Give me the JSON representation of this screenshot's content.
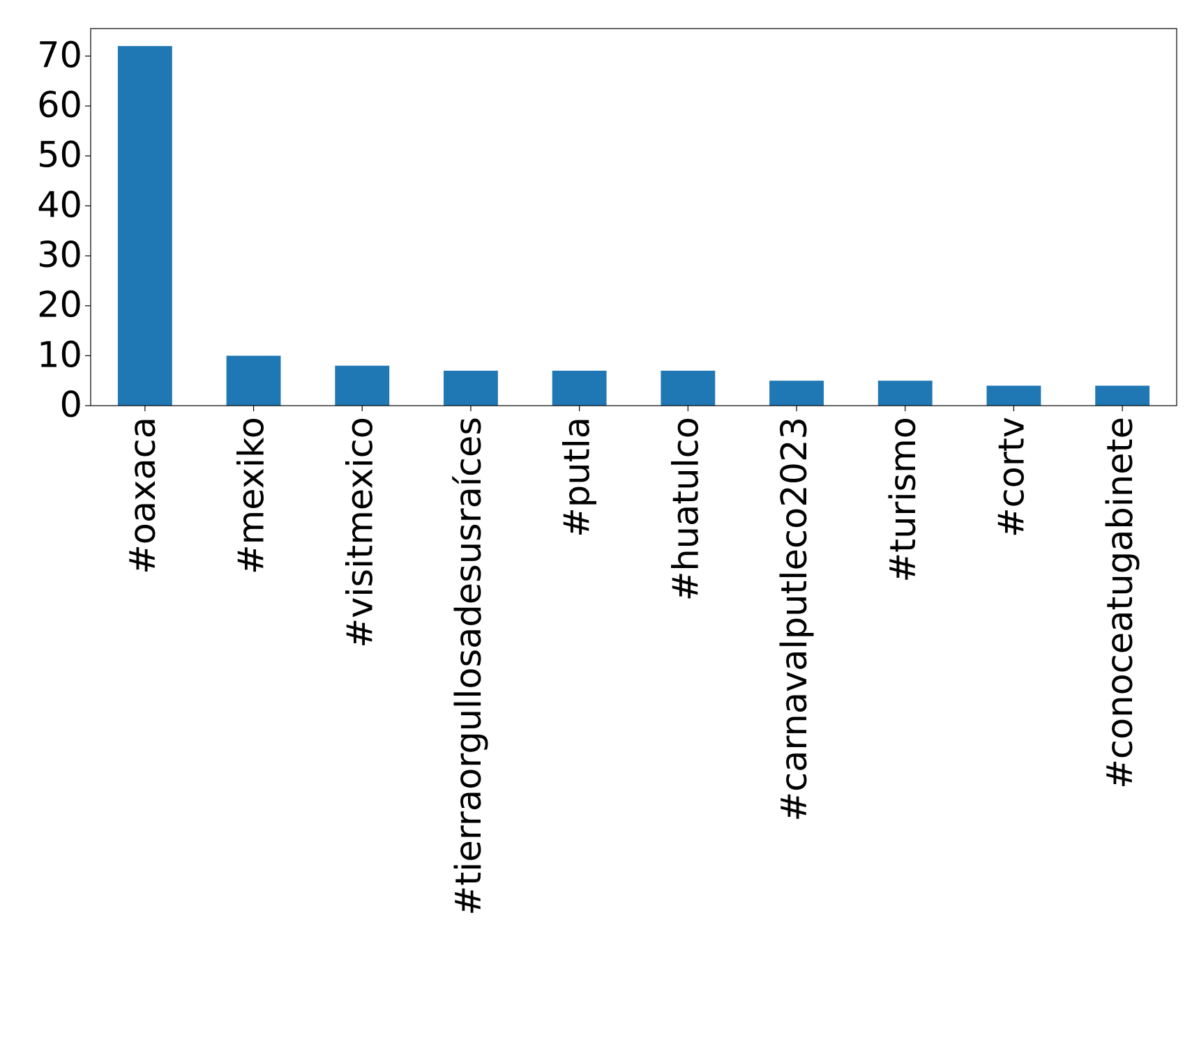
{
  "chart_data": {
    "type": "bar",
    "categories": [
      "#oaxaca",
      "#mexiko",
      "#visitmexico",
      "#tierraorgullosadesusraíces",
      "#putla",
      "#huatulco",
      "#carnavalputleco2023",
      "#turismo",
      "#cortv",
      "#conoceatugabinete"
    ],
    "values": [
      72,
      10,
      8,
      7,
      7,
      7,
      5,
      5,
      4,
      4
    ],
    "color": "#1f77b4",
    "ylim": [
      0,
      75.5
    ],
    "yticks": [
      0,
      10,
      20,
      30,
      40,
      50,
      60,
      70
    ],
    "grid": false
  }
}
